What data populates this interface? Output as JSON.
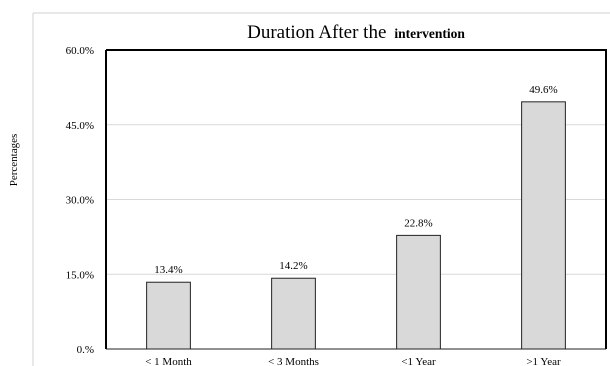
{
  "chart_data": {
    "type": "bar",
    "title": "Duration After the",
    "title_tail": "intervention",
    "xlabel": "",
    "ylabel": "Percentages",
    "categories": [
      "< 1 Month",
      "< 3 Months",
      "<1 Year",
      ">1 Year"
    ],
    "values": [
      13.4,
      14.2,
      22.8,
      49.6
    ],
    "data_labels": [
      "13.4%",
      "14.2%",
      "22.8%",
      "49.6%"
    ],
    "ylim": [
      0,
      60
    ],
    "yticks": [
      0,
      15,
      30,
      45,
      60
    ],
    "ytick_labels": [
      "0.%",
      "15.0%",
      "30.0%",
      "45.0%",
      "60.0%"
    ],
    "grid": true,
    "legend": "none",
    "colors": {
      "bar_fill": "#d9d9d9",
      "bar_stroke": "#222222",
      "grid": "#d9d9d9",
      "frame": "#000000"
    }
  }
}
